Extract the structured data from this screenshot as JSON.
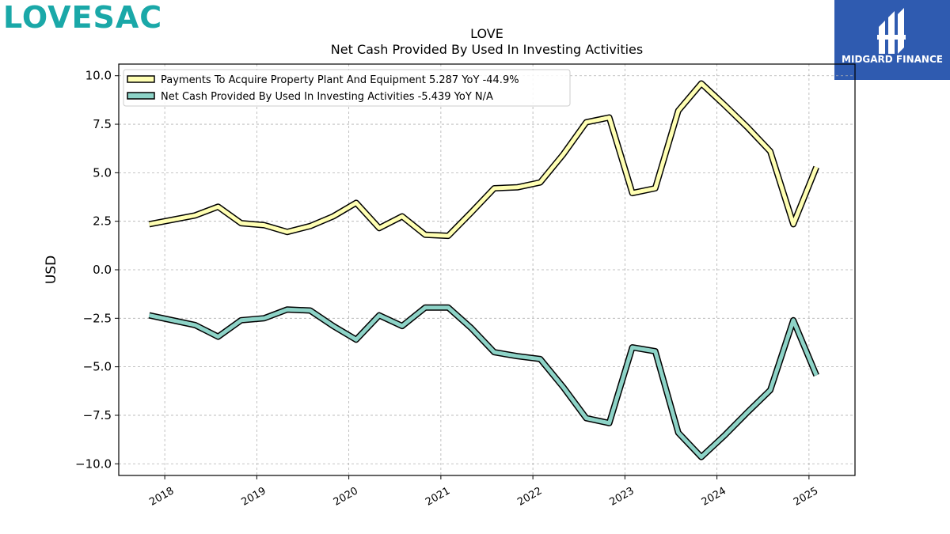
{
  "brand": {
    "logo_text": "LOVESAC",
    "logo_color": "#1aa8a8"
  },
  "badge": {
    "text": "MIDGARD FINANCE",
    "bg_color": "#2f5bb0"
  },
  "chart_data": {
    "type": "line",
    "title": "LOVE",
    "subtitle": "Net Cash Provided By Used In Investing Activities",
    "xlabel": "",
    "ylabel": "USD",
    "ylim": [
      -10.6,
      10.6
    ],
    "yticks": [
      -10.0,
      -7.5,
      -5.0,
      -2.5,
      0.0,
      2.5,
      5.0,
      7.5,
      10.0
    ],
    "ytick_labels": [
      "−10.0",
      "−7.5",
      "−5.0",
      "−2.5",
      "0.0",
      "2.5",
      "5.0",
      "7.5",
      "10.0"
    ],
    "xlim": [
      2017.5,
      2025.5
    ],
    "xticks": [
      2018,
      2019,
      2020,
      2021,
      2022,
      2023,
      2024,
      2025
    ],
    "xtick_labels": [
      "2018",
      "2019",
      "2020",
      "2021",
      "2022",
      "2023",
      "2024",
      "2025"
    ],
    "grid": true,
    "legend_position": "top-left",
    "x": [
      2017.83,
      2018.33,
      2018.58,
      2018.83,
      2019.08,
      2019.33,
      2019.58,
      2019.83,
      2020.08,
      2020.33,
      2020.58,
      2020.83,
      2021.08,
      2021.33,
      2021.58,
      2021.83,
      2022.08,
      2022.33,
      2022.58,
      2022.83,
      2023.08,
      2023.33,
      2023.58,
      2023.83,
      2024.08,
      2024.33,
      2024.58,
      2024.83,
      2025.08
    ],
    "series": [
      {
        "name": "Payments To Acquire Property Plant And Equipment  5.287 YoY -44.9%",
        "color": "#ffffb3",
        "values": [
          2.35,
          2.8,
          3.25,
          2.4,
          2.3,
          1.95,
          2.25,
          2.75,
          3.45,
          2.15,
          2.75,
          1.8,
          1.75,
          2.95,
          4.2,
          4.25,
          4.5,
          5.95,
          7.6,
          7.85,
          3.95,
          4.2,
          8.2,
          9.6,
          8.5,
          7.35,
          6.1,
          2.35,
          5.29
        ]
      },
      {
        "name": "Net Cash Provided By Used In Investing Activities  -5.439 YoY N/A",
        "color": "#8dd3c7",
        "values": [
          -2.35,
          -2.85,
          -3.45,
          -2.6,
          -2.5,
          -2.05,
          -2.1,
          -2.9,
          -3.6,
          -2.35,
          -2.9,
          -1.95,
          -1.95,
          -3.0,
          -4.25,
          -4.45,
          -4.6,
          -6.05,
          -7.65,
          -7.9,
          -4.0,
          -4.2,
          -8.4,
          -9.65,
          -8.55,
          -7.35,
          -6.2,
          -2.6,
          -5.44
        ]
      }
    ]
  }
}
